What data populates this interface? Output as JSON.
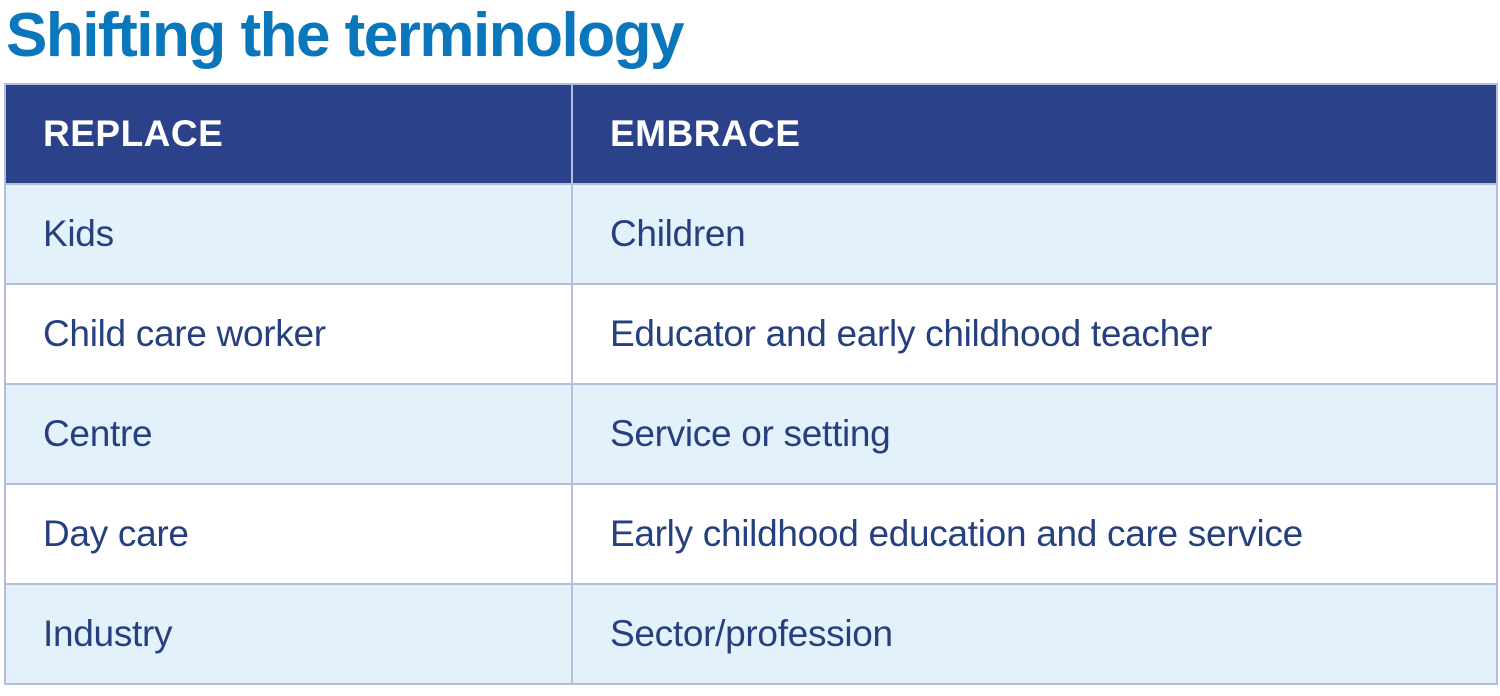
{
  "title": "Shifting the terminology",
  "colors": {
    "title": "#0a76bb",
    "header_bg": "#2b4189",
    "header_text": "#ffffff",
    "row_alt_bg": "#e3f1fb",
    "row_plain_bg": "#ffffff",
    "cell_text": "#26407f",
    "border": "#b4bedb"
  },
  "table": {
    "headers": [
      "REPLACE",
      "EMBRACE"
    ],
    "rows": [
      [
        "Kids",
        "Children"
      ],
      [
        "Child care worker",
        "Educator and early childhood teacher"
      ],
      [
        "Centre",
        "Service or setting"
      ],
      [
        "Day care",
        "Early childhood education and care service"
      ],
      [
        "Industry",
        "Sector/profession"
      ]
    ]
  }
}
